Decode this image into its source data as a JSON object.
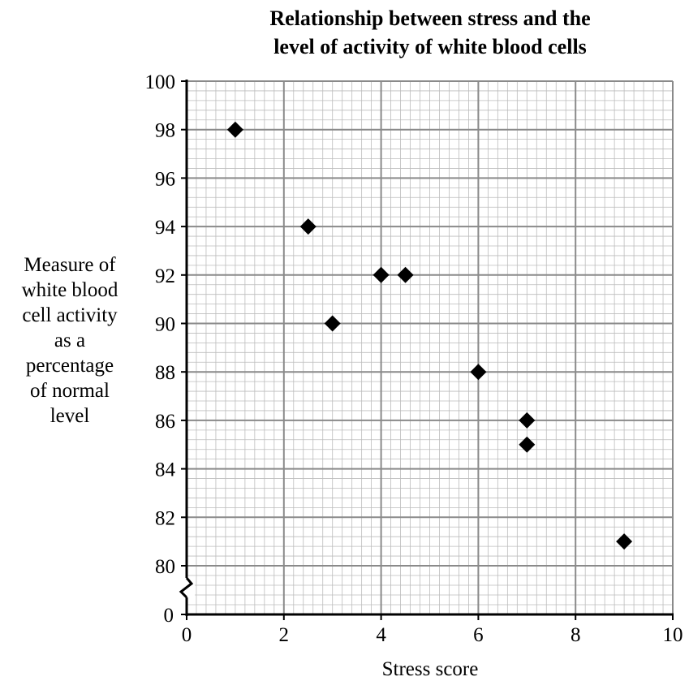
{
  "chart_data": {
    "type": "scatter",
    "title": [
      "Relationship between stress and the",
      "level of activity of white blood cells"
    ],
    "xlabel": "Stress score",
    "ylabel": [
      "Measure of",
      "white blood",
      "cell activity",
      "as a",
      "percentage",
      "of normal",
      "level"
    ],
    "xlim": [
      0,
      10
    ],
    "ylim": [
      80,
      100
    ],
    "y_axis_break": true,
    "y_axis_origin_label": "0",
    "x_ticks": [
      "0",
      "2",
      "4",
      "6",
      "8",
      "10"
    ],
    "y_ticks": [
      "80",
      "82",
      "84",
      "86",
      "88",
      "90",
      "92",
      "94",
      "96",
      "98",
      "100"
    ],
    "grid": "on (major and minor)",
    "marker": "filled diamond",
    "points": [
      {
        "x": 1,
        "y": 98
      },
      {
        "x": 2.5,
        "y": 94
      },
      {
        "x": 3,
        "y": 90
      },
      {
        "x": 4,
        "y": 92
      },
      {
        "x": 4.5,
        "y": 92
      },
      {
        "x": 6,
        "y": 88
      },
      {
        "x": 7,
        "y": 86
      },
      {
        "x": 7,
        "y": 85
      },
      {
        "x": 9,
        "y": 81
      }
    ]
  }
}
